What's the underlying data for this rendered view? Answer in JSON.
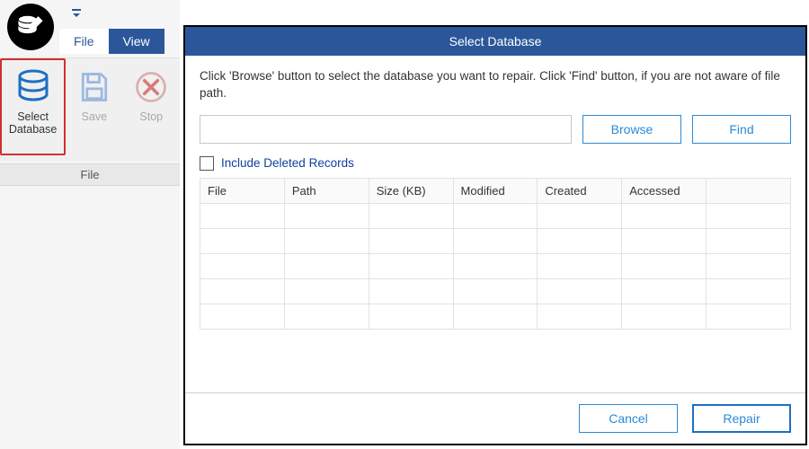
{
  "colors": {
    "brand": "#2b579a",
    "accent_btn": "#2b8ad6",
    "highlight_border": "#d03030"
  },
  "tabs": {
    "file": "File",
    "view": "View",
    "active": "file"
  },
  "ribbon": {
    "group_label": "File",
    "select_db": {
      "line1": "Select",
      "line2": "Database"
    },
    "save": "Save",
    "stop": "Stop"
  },
  "dialog": {
    "title": "Select Database",
    "instruction": "Click 'Browse' button to select the database you want to repair. Click 'Find' button, if you are not aware of file path.",
    "path_value": "",
    "browse": "Browse",
    "find": "Find",
    "include_deleted": "Include Deleted Records",
    "columns": [
      "File",
      "Path",
      "Size (KB)",
      "Modified",
      "Created",
      "Accessed",
      ""
    ],
    "empty_rows": 5,
    "cancel": "Cancel",
    "repair": "Repair"
  }
}
